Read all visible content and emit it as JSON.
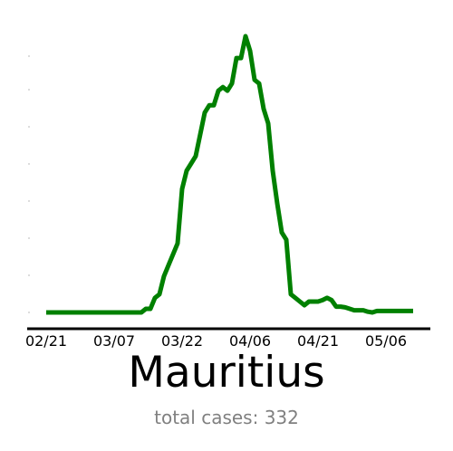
{
  "chart_data": {
    "type": "line",
    "title": "Mauritius",
    "subtitle": "total cases: 332",
    "xlabel": "",
    "ylabel": "",
    "x_tick_labels": [
      "02/21",
      "03/07",
      "03/22",
      "04/06",
      "04/21",
      "05/06"
    ],
    "x_tick_days": [
      0,
      15,
      30,
      45,
      60,
      75
    ],
    "grid": false,
    "legend": "none",
    "y_axis_visible": false,
    "ylim": [
      0,
      38
    ],
    "series": [
      {
        "color": "#008000",
        "x": [
          0,
          1,
          2,
          3,
          4,
          5,
          6,
          7,
          8,
          9,
          10,
          11,
          12,
          13,
          14,
          15,
          16,
          17,
          18,
          19,
          20,
          21,
          22,
          23,
          24,
          25,
          26,
          27,
          28,
          29,
          30,
          31,
          32,
          33,
          34,
          35,
          36,
          37,
          38,
          39,
          40,
          41,
          42,
          43,
          44,
          45,
          46,
          47,
          48,
          49,
          50,
          51,
          52,
          53,
          54,
          55,
          56,
          57,
          58,
          59,
          60,
          61,
          62,
          63,
          64,
          65,
          66,
          67,
          68,
          69,
          70,
          71,
          72,
          73,
          74,
          75,
          76,
          77,
          78,
          79,
          80,
          81
        ],
        "y": [
          0,
          0,
          0,
          0,
          0,
          0,
          0,
          0,
          0,
          0,
          0,
          0,
          0,
          0,
          0,
          0,
          0,
          0,
          0,
          0,
          0,
          0,
          0.5,
          0.5,
          2,
          2.5,
          5,
          6.5,
          8,
          9.5,
          17,
          19.5,
          20.5,
          21.5,
          24.5,
          27.5,
          28.5,
          28.5,
          30.5,
          31,
          30.5,
          31.5,
          35,
          35,
          38,
          36,
          32,
          31.5,
          28,
          26,
          19.5,
          15,
          11,
          10,
          2.5,
          2,
          1.5,
          1,
          1.5,
          1.5,
          1.5,
          1.7,
          2,
          1.7,
          0.8,
          0.8,
          0.7,
          0.5,
          0.3,
          0.3,
          0.3,
          0.1,
          0,
          0.2,
          0.2,
          0.2,
          0.2,
          0.2,
          0.2,
          0.2,
          0.2,
          0.2
        ]
      }
    ]
  },
  "colors": {
    "line": "#008000",
    "axis": "#000000",
    "subtitle": "#808080"
  }
}
